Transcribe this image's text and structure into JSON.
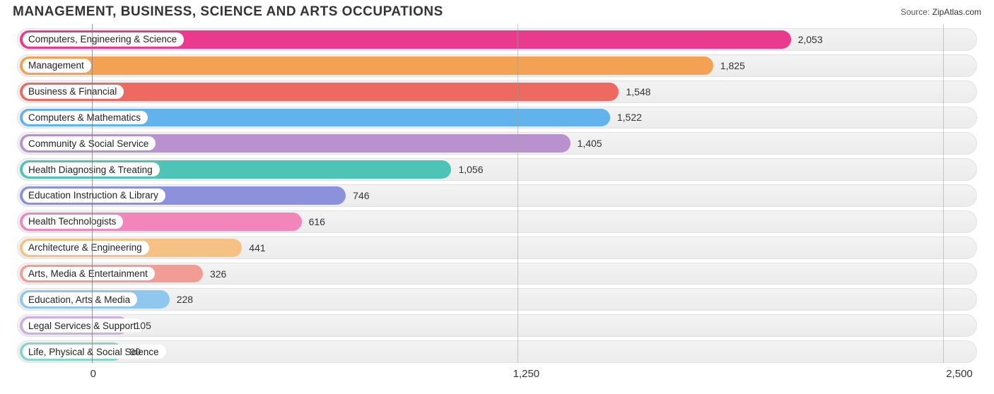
{
  "title": "MANAGEMENT, BUSINESS, SCIENCE AND ARTS OCCUPATIONS",
  "source": {
    "label": "Source:",
    "value": "ZipAtlas.com"
  },
  "chart": {
    "type": "bar-horizontal",
    "xmin": -220,
    "xmax": 2600,
    "xticks": [
      {
        "v": 0,
        "label": "0"
      },
      {
        "v": 1250,
        "label": "1,250"
      },
      {
        "v": 2500,
        "label": "2,500"
      }
    ],
    "track_bg": "#ececec",
    "track_border": "#e2e2e2",
    "grid_color": "#9e9e9e",
    "bar_start": 0,
    "label_pill_left": 8,
    "rows": [
      {
        "label": "Computers, Engineering & Science",
        "value": 2053,
        "value_fmt": "2,053",
        "color": "#ea3a8e"
      },
      {
        "label": "Management",
        "value": 1825,
        "value_fmt": "1,825",
        "color": "#f3a254"
      },
      {
        "label": "Business & Financial",
        "value": 1548,
        "value_fmt": "1,548",
        "color": "#ee6a60"
      },
      {
        "label": "Computers & Mathematics",
        "value": 1522,
        "value_fmt": "1,522",
        "color": "#62b3ed"
      },
      {
        "label": "Community & Social Service",
        "value": 1405,
        "value_fmt": "1,405",
        "color": "#ba91cf"
      },
      {
        "label": "Health Diagnosing & Treating",
        "value": 1056,
        "value_fmt": "1,056",
        "color": "#4ec4b6"
      },
      {
        "label": "Education Instruction & Library",
        "value": 746,
        "value_fmt": "746",
        "color": "#8b91db"
      },
      {
        "label": "Health Technologists",
        "value": 616,
        "value_fmt": "616",
        "color": "#f286ba"
      },
      {
        "label": "Architecture & Engineering",
        "value": 441,
        "value_fmt": "441",
        "color": "#f6c184"
      },
      {
        "label": "Arts, Media & Entertainment",
        "value": 326,
        "value_fmt": "326",
        "color": "#f19c94"
      },
      {
        "label": "Education, Arts & Media",
        "value": 228,
        "value_fmt": "228",
        "color": "#8fc8ee"
      },
      {
        "label": "Legal Services & Support",
        "value": 105,
        "value_fmt": "105",
        "color": "#ccb0de"
      },
      {
        "label": "Life, Physical & Social Science",
        "value": 90,
        "value_fmt": "90",
        "color": "#87d6cc"
      }
    ]
  }
}
